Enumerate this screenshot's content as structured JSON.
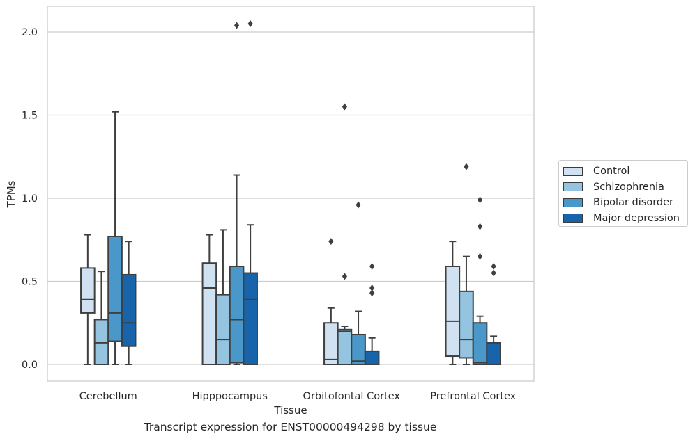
{
  "chart_data": {
    "type": "box",
    "xlabel": "Tissue",
    "ylabel": "TPMs",
    "caption": "Transcript expression for ENST00000494298 by tissue",
    "ylim": [
      -0.1,
      2.15
    ],
    "yticks": [
      0.0,
      0.5,
      1.0,
      1.5,
      2.0
    ],
    "ytick_labels": [
      "0.0",
      "0.5",
      "1.0",
      "1.5",
      "2.0"
    ],
    "grid": "horizontal",
    "legend_position": "right",
    "categories": [
      "Cerebellum",
      "Hipppocampus",
      "Orbitofontal Cortex",
      "Prefrontal Cortex"
    ],
    "series": [
      {
        "name": "Control",
        "color": "#d0e1f2",
        "boxes": [
          {
            "whislo": 0.0,
            "q1": 0.31,
            "med": 0.39,
            "q3": 0.58,
            "whishi": 0.78,
            "fliers": []
          },
          {
            "whislo": 0.0,
            "q1": 0.0,
            "med": 0.46,
            "q3": 0.61,
            "whishi": 0.78,
            "fliers": []
          },
          {
            "whislo": 0.0,
            "q1": 0.0,
            "med": 0.03,
            "q3": 0.25,
            "whishi": 0.34,
            "fliers": [
              0.74
            ]
          },
          {
            "whislo": 0.0,
            "q1": 0.05,
            "med": 0.26,
            "q3": 0.59,
            "whishi": 0.74,
            "fliers": []
          }
        ]
      },
      {
        "name": "Schizophrenia",
        "color": "#94c4df",
        "boxes": [
          {
            "whislo": 0.0,
            "q1": 0.0,
            "med": 0.13,
            "q3": 0.27,
            "whishi": 0.56,
            "fliers": []
          },
          {
            "whislo": 0.0,
            "q1": 0.0,
            "med": 0.15,
            "q3": 0.42,
            "whishi": 0.81,
            "fliers": []
          },
          {
            "whislo": 0.0,
            "q1": 0.0,
            "med": 0.2,
            "q3": 0.21,
            "whishi": 0.23,
            "fliers": [
              0.53,
              1.55
            ]
          },
          {
            "whislo": 0.0,
            "q1": 0.04,
            "med": 0.15,
            "q3": 0.44,
            "whishi": 0.65,
            "fliers": [
              1.19
            ]
          }
        ]
      },
      {
        "name": "Bipolar disorder",
        "color": "#4a98c9",
        "boxes": [
          {
            "whislo": 0.0,
            "q1": 0.14,
            "med": 0.31,
            "q3": 0.77,
            "whishi": 1.52,
            "fliers": []
          },
          {
            "whislo": 0.0,
            "q1": 0.01,
            "med": 0.27,
            "q3": 0.59,
            "whishi": 1.14,
            "fliers": [
              2.04
            ]
          },
          {
            "whislo": 0.0,
            "q1": 0.0,
            "med": 0.02,
            "q3": 0.18,
            "whishi": 0.32,
            "fliers": [
              0.96
            ]
          },
          {
            "whislo": 0.0,
            "q1": 0.0,
            "med": 0.01,
            "q3": 0.25,
            "whishi": 0.29,
            "fliers": [
              0.65,
              0.83,
              0.99
            ]
          }
        ]
      },
      {
        "name": "Major depression",
        "color": "#1764ab",
        "boxes": [
          {
            "whislo": 0.0,
            "q1": 0.11,
            "med": 0.25,
            "q3": 0.54,
            "whishi": 0.74,
            "fliers": []
          },
          {
            "whislo": 0.0,
            "q1": 0.0,
            "med": 0.39,
            "q3": 0.55,
            "whishi": 0.84,
            "fliers": [
              2.05
            ]
          },
          {
            "whislo": 0.0,
            "q1": 0.0,
            "med": 0.0,
            "q3": 0.08,
            "whishi": 0.16,
            "fliers": [
              0.43,
              0.46,
              0.59
            ]
          },
          {
            "whislo": 0.0,
            "q1": 0.0,
            "med": 0.0,
            "q3": 0.13,
            "whishi": 0.17,
            "fliers": [
              0.55,
              0.59
            ]
          }
        ]
      }
    ]
  }
}
